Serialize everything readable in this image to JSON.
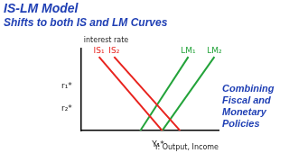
{
  "chart_data": {
    "type": "line",
    "title": "IS-LM Model",
    "subtitle": "Shifts to both IS and LM Curves",
    "annotations": [
      "Combining",
      "Fiscal and",
      "Monetary",
      "Policies"
    ],
    "x_label": "Y: Output, Income",
    "y_label": "interest rate",
    "xlim": [
      0,
      10
    ],
    "ylim": [
      0,
      10
    ],
    "xticks": [
      {
        "value": 5.6,
        "label": "Y₁*"
      }
    ],
    "yticks": [
      {
        "value": 2.7,
        "label": "r₂*"
      },
      {
        "value": 5.4,
        "label": "r₁*"
      }
    ],
    "grid": false,
    "series": [
      {
        "name": "IS₁",
        "color": "#e8231e",
        "x": [
          1.3,
          5.9
        ],
        "values": [
          9,
          0
        ]
      },
      {
        "name": "IS₂",
        "color": "#e8231e",
        "x": [
          2.4,
          7.2
        ],
        "values": [
          9,
          0
        ]
      },
      {
        "name": "LM₁",
        "color": "#23a33a",
        "x": [
          4.3,
          7.8
        ],
        "values": [
          0,
          9
        ]
      },
      {
        "name": "LM₂",
        "color": "#23a33a",
        "x": [
          5.9,
          9.7
        ],
        "values": [
          0,
          9
        ]
      }
    ]
  }
}
